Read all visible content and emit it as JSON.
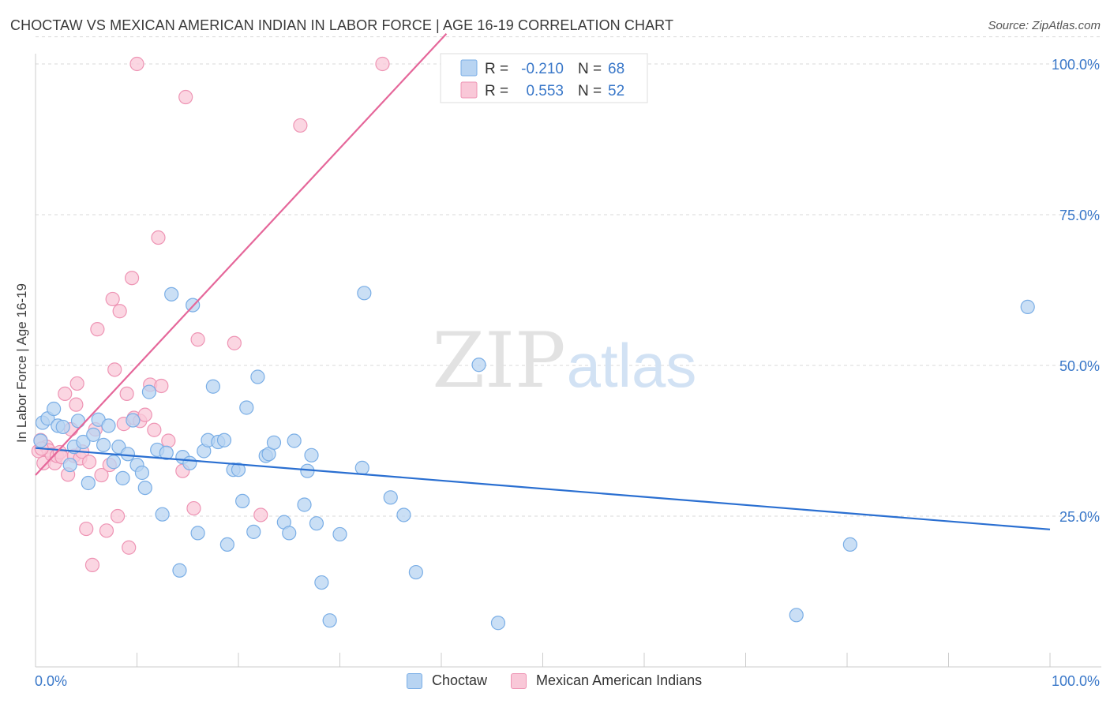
{
  "header": {
    "title": "CHOCTAW VS MEXICAN AMERICAN INDIAN IN LABOR FORCE | AGE 16-19 CORRELATION CHART",
    "source": "Source: ZipAtlas.com"
  },
  "watermark": {
    "zip": "ZIP",
    "atlas": "atlas"
  },
  "legend_top": [
    {
      "r_label": "R =",
      "r_value": "-0.210",
      "n_label": "N =",
      "n_value": "68"
    },
    {
      "r_label": "R =",
      "r_value": "0.553",
      "n_label": "N =",
      "n_value": "52"
    }
  ],
  "legend_bottom": [
    {
      "label": "Choctaw"
    },
    {
      "label": "Mexican American Indians"
    }
  ],
  "colors": {
    "choctaw_fill": "#b8d4f2",
    "choctaw_stroke": "#7aaee6",
    "choctaw_line": "#2a6fd1",
    "mexican_fill": "#f9c8d8",
    "mexican_stroke": "#ee94b4",
    "mexican_line": "#e5679a",
    "axis_label": "#3a78c9",
    "grid": "#d9d9d9"
  },
  "chart_data": {
    "type": "scatter",
    "title": "CHOCTAW VS MEXICAN AMERICAN INDIAN IN LABOR FORCE | AGE 16-19 CORRELATION CHART",
    "xlabel": "",
    "ylabel": "In Labor Force | Age 16-19",
    "xlim": [
      0,
      100
    ],
    "ylim": [
      0,
      105
    ],
    "x_tick_labels": [
      "0.0%",
      "100.0%"
    ],
    "y_ticks": [
      25,
      50,
      75,
      100
    ],
    "y_tick_labels": [
      "25.0%",
      "50.0%",
      "75.0%",
      "100.0%"
    ],
    "grid": true,
    "legend_position": "top-center",
    "series": [
      {
        "name": "Choctaw",
        "R": -0.21,
        "N": 68,
        "trend": {
          "x": [
            0,
            100
          ],
          "y": [
            36.3,
            22.8
          ]
        },
        "points": [
          [
            0.5,
            37.5
          ],
          [
            0.7,
            40.5
          ],
          [
            1.2,
            41.2
          ],
          [
            1.8,
            42.8
          ],
          [
            2.2,
            40.0
          ],
          [
            2.7,
            39.8
          ],
          [
            3.4,
            33.5
          ],
          [
            3.8,
            36.5
          ],
          [
            4.2,
            40.8
          ],
          [
            4.7,
            37.3
          ],
          [
            5.2,
            30.5
          ],
          [
            5.7,
            38.5
          ],
          [
            6.2,
            41.0
          ],
          [
            6.7,
            36.8
          ],
          [
            7.2,
            40.0
          ],
          [
            7.7,
            34.0
          ],
          [
            8.2,
            36.5
          ],
          [
            8.6,
            31.3
          ],
          [
            9.1,
            35.3
          ],
          [
            9.6,
            40.9
          ],
          [
            10.0,
            33.5
          ],
          [
            10.5,
            32.2
          ],
          [
            10.8,
            29.7
          ],
          [
            11.2,
            45.6
          ],
          [
            12.0,
            36.0
          ],
          [
            12.5,
            25.3
          ],
          [
            12.9,
            35.5
          ],
          [
            13.4,
            61.8
          ],
          [
            14.2,
            16.0
          ],
          [
            14.5,
            34.8
          ],
          [
            15.2,
            33.8
          ],
          [
            15.5,
            60.0
          ],
          [
            16.0,
            22.2
          ],
          [
            16.6,
            35.8
          ],
          [
            17.0,
            37.6
          ],
          [
            17.5,
            46.5
          ],
          [
            18.0,
            37.3
          ],
          [
            18.6,
            37.6
          ],
          [
            18.9,
            20.3
          ],
          [
            19.5,
            32.7
          ],
          [
            20.0,
            32.7
          ],
          [
            20.4,
            27.5
          ],
          [
            20.8,
            43.0
          ],
          [
            21.5,
            22.4
          ],
          [
            21.9,
            48.1
          ],
          [
            22.7,
            35.0
          ],
          [
            23.0,
            35.3
          ],
          [
            23.5,
            37.2
          ],
          [
            24.5,
            24.0
          ],
          [
            25.0,
            22.2
          ],
          [
            25.5,
            37.5
          ],
          [
            26.5,
            26.9
          ],
          [
            26.8,
            32.5
          ],
          [
            27.2,
            35.1
          ],
          [
            27.7,
            23.8
          ],
          [
            28.2,
            14.0
          ],
          [
            29.0,
            7.7
          ],
          [
            30.0,
            22.0
          ],
          [
            32.2,
            33.0
          ],
          [
            32.4,
            62.0
          ],
          [
            35.0,
            28.1
          ],
          [
            36.3,
            25.2
          ],
          [
            37.5,
            15.7
          ],
          [
            43.7,
            50.1
          ],
          [
            45.6,
            7.3
          ],
          [
            75.0,
            8.6
          ],
          [
            80.3,
            20.3
          ],
          [
            97.8,
            59.7
          ]
        ]
      },
      {
        "name": "Mexican American Indians",
        "R": 0.553,
        "N": 52,
        "trend": {
          "x": [
            0,
            40.5
          ],
          "y": [
            31.8,
            105.0
          ]
        },
        "points": [
          [
            0.3,
            35.8
          ],
          [
            0.5,
            37.6
          ],
          [
            0.8,
            33.8
          ],
          [
            1.1,
            36.5
          ],
          [
            1.3,
            35.9
          ],
          [
            1.6,
            35.2
          ],
          [
            1.9,
            33.8
          ],
          [
            2.1,
            35.0
          ],
          [
            2.4,
            35.6
          ],
          [
            2.6,
            34.8
          ],
          [
            2.9,
            45.3
          ],
          [
            3.2,
            31.9
          ],
          [
            3.5,
            39.4
          ],
          [
            3.8,
            35.0
          ],
          [
            4.0,
            43.5
          ],
          [
            4.1,
            47.0
          ],
          [
            4.4,
            34.6
          ],
          [
            4.6,
            35.7
          ],
          [
            5.0,
            22.9
          ],
          [
            5.3,
            34.0
          ],
          [
            5.6,
            16.9
          ],
          [
            5.9,
            39.4
          ],
          [
            6.1,
            56.0
          ],
          [
            6.5,
            31.8
          ],
          [
            7.0,
            22.6
          ],
          [
            7.3,
            33.5
          ],
          [
            7.6,
            61.0
          ],
          [
            7.8,
            49.3
          ],
          [
            8.1,
            25.0
          ],
          [
            8.3,
            59.0
          ],
          [
            8.7,
            40.3
          ],
          [
            9.0,
            45.3
          ],
          [
            9.2,
            19.8
          ],
          [
            9.5,
            64.5
          ],
          [
            9.7,
            41.3
          ],
          [
            10.0,
            100.0
          ],
          [
            10.3,
            40.8
          ],
          [
            10.8,
            41.8
          ],
          [
            11.3,
            46.8
          ],
          [
            11.7,
            39.3
          ],
          [
            12.1,
            71.2
          ],
          [
            12.4,
            46.6
          ],
          [
            13.1,
            37.5
          ],
          [
            14.5,
            32.5
          ],
          [
            14.8,
            94.5
          ],
          [
            15.6,
            26.3
          ],
          [
            16.0,
            54.3
          ],
          [
            19.6,
            53.7
          ],
          [
            22.2,
            25.2
          ],
          [
            26.1,
            89.8
          ],
          [
            34.2,
            100.0
          ],
          [
            0.6,
            36.2
          ]
        ]
      }
    ]
  }
}
